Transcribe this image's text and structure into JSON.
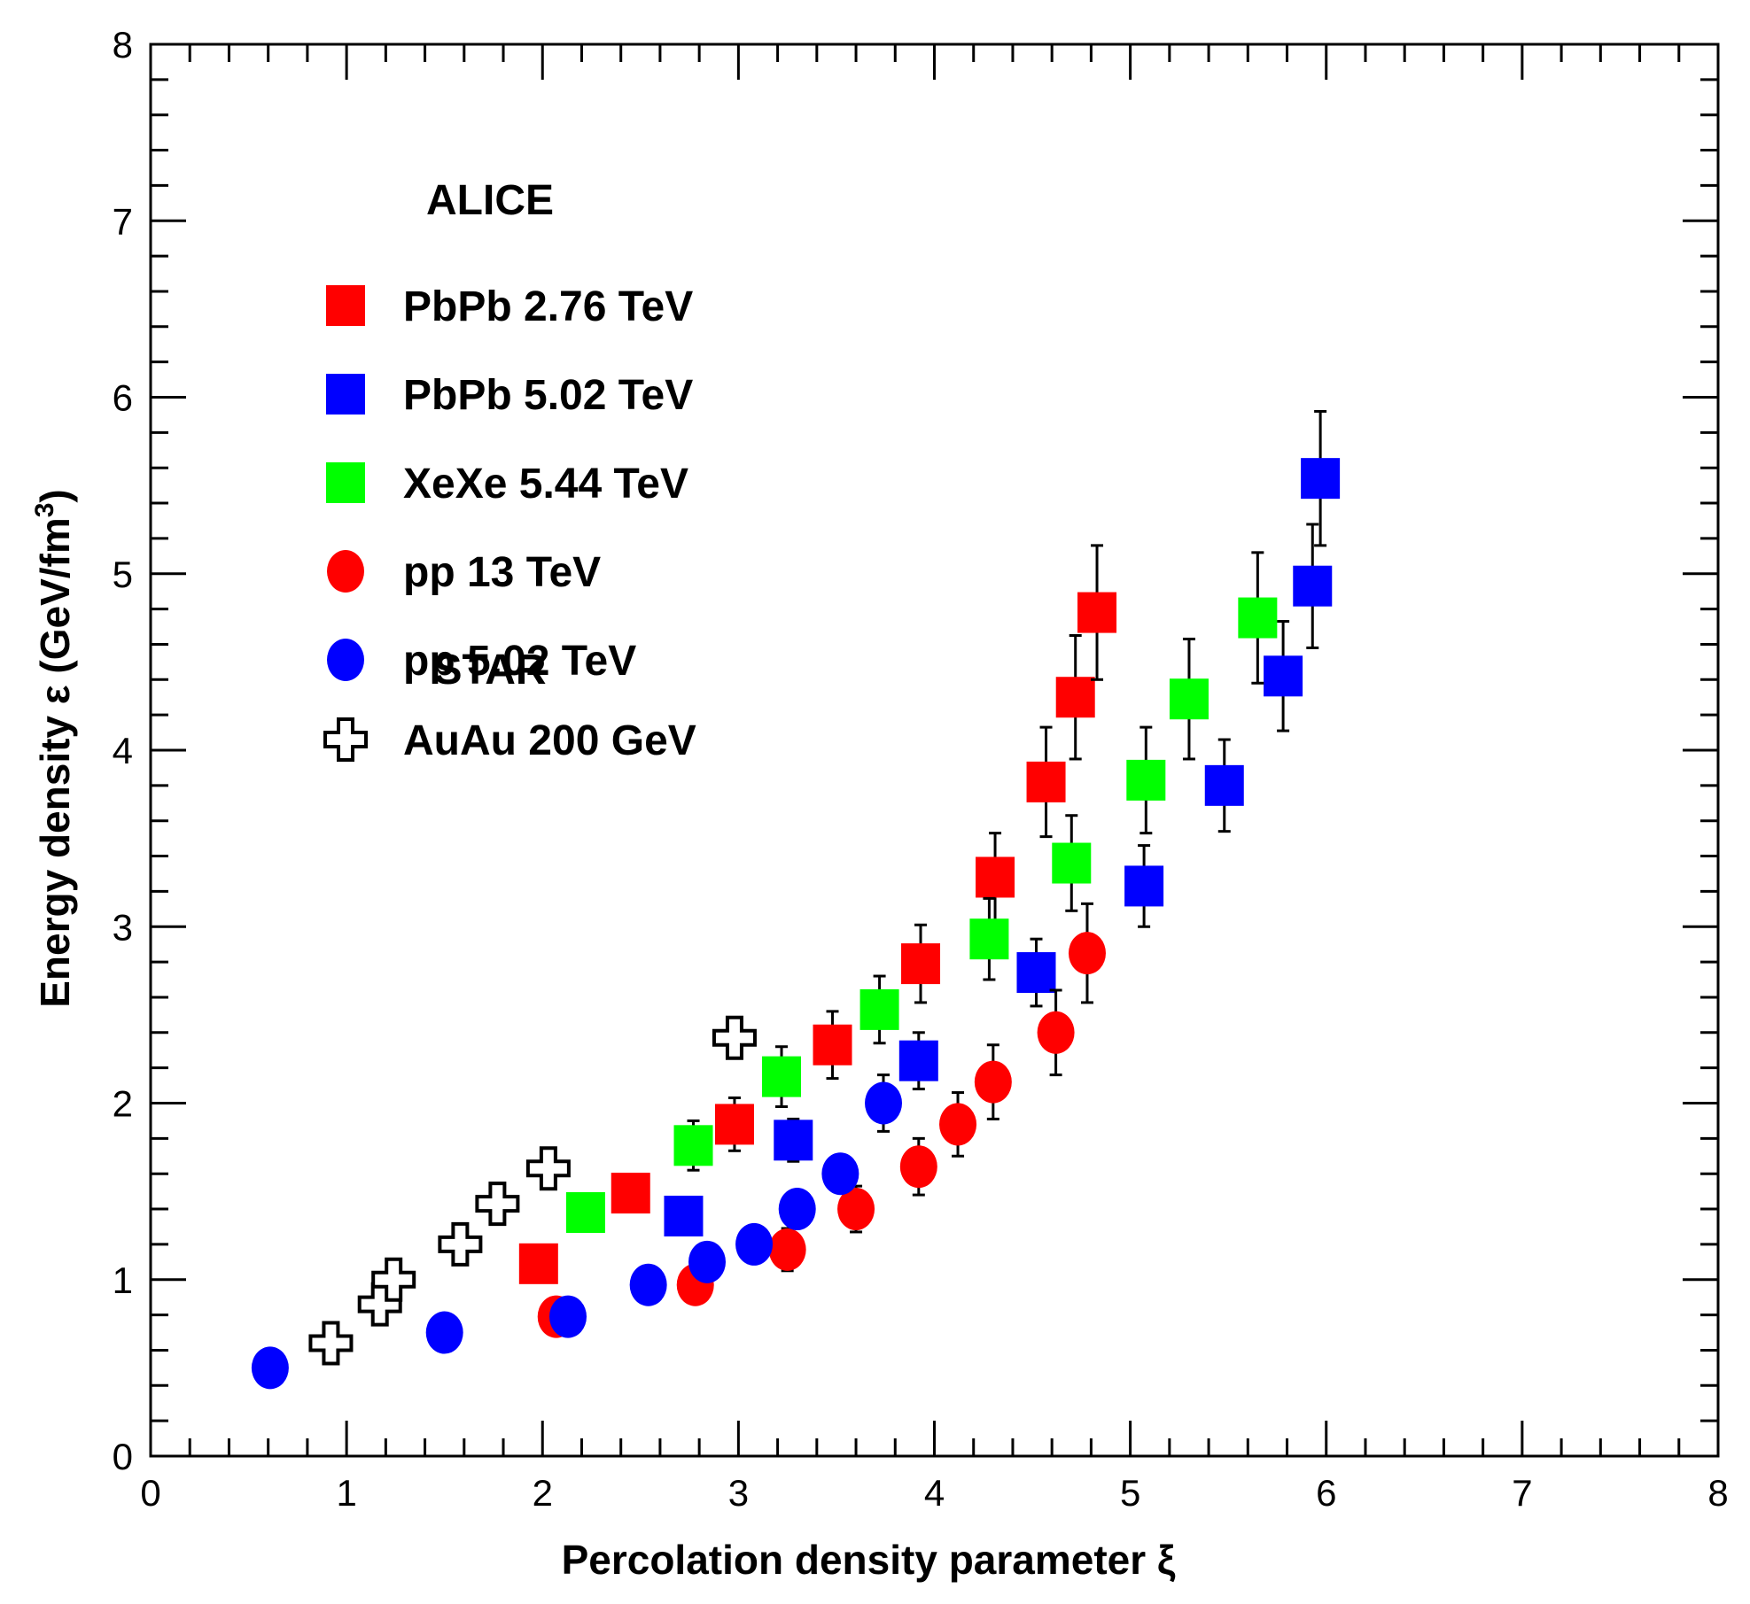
{
  "chart_data": {
    "type": "scatter",
    "title": "",
    "xlabel": "Percolation density parameter ξ",
    "ylabel": "Energy density  ε (GeV/fm",
    "ylabel_superscript": "3",
    "ylabel_close": ")",
    "xlim": [
      0,
      8
    ],
    "ylim": [
      0,
      8
    ],
    "x_ticks": [
      "0",
      "1",
      "2",
      "3",
      "4",
      "5",
      "6",
      "7",
      "8"
    ],
    "y_ticks": [
      "0",
      "1",
      "2",
      "3",
      "4",
      "5",
      "6",
      "7",
      "8"
    ],
    "grid": false,
    "legend": {
      "placement": "top-left",
      "groups": [
        {
          "header": "ALICE",
          "entries": [
            "PbPb 2.76 TeV",
            "PbPb 5.02 TeV",
            "XeXe 5.44 TeV",
            "pp 13 TeV",
            "pp 5.02 TeV"
          ]
        },
        {
          "header": "STAR",
          "entries": [
            "AuAu 200 GeV"
          ]
        }
      ]
    },
    "series": [
      {
        "name": "PbPb 2.76 TeV",
        "marker": "square",
        "color": "#ff0000",
        "points": [
          {
            "x": 1.98,
            "y": 1.09,
            "err": 0.0
          },
          {
            "x": 2.45,
            "y": 1.49,
            "err": 0.1
          },
          {
            "x": 2.98,
            "y": 1.88,
            "err": 0.15
          },
          {
            "x": 3.48,
            "y": 2.33,
            "err": 0.19
          },
          {
            "x": 3.93,
            "y": 2.79,
            "err": 0.22
          },
          {
            "x": 4.31,
            "y": 3.28,
            "err": 0.25
          },
          {
            "x": 4.57,
            "y": 3.82,
            "err": 0.31
          },
          {
            "x": 4.72,
            "y": 4.3,
            "err": 0.35
          },
          {
            "x": 4.83,
            "y": 4.78,
            "err": 0.38
          }
        ]
      },
      {
        "name": "PbPb 5.02 TeV",
        "marker": "square",
        "color": "#0000ff",
        "points": [
          {
            "x": 2.72,
            "y": 1.36,
            "err": 0.0
          },
          {
            "x": 3.28,
            "y": 1.79,
            "err": 0.12
          },
          {
            "x": 3.92,
            "y": 2.24,
            "err": 0.16
          },
          {
            "x": 4.52,
            "y": 2.74,
            "err": 0.19
          },
          {
            "x": 5.07,
            "y": 3.23,
            "err": 0.23
          },
          {
            "x": 5.48,
            "y": 3.8,
            "err": 0.26
          },
          {
            "x": 5.78,
            "y": 4.42,
            "err": 0.31
          },
          {
            "x": 5.93,
            "y": 4.93,
            "err": 0.35
          },
          {
            "x": 5.97,
            "y": 5.54,
            "err": 0.38
          }
        ]
      },
      {
        "name": "XeXe 5.44 TeV",
        "marker": "square",
        "color": "#00ff00",
        "points": [
          {
            "x": 2.22,
            "y": 1.38,
            "err": 0.0
          },
          {
            "x": 2.77,
            "y": 1.76,
            "err": 0.14
          },
          {
            "x": 3.22,
            "y": 2.15,
            "err": 0.17
          },
          {
            "x": 3.72,
            "y": 2.53,
            "err": 0.19
          },
          {
            "x": 4.28,
            "y": 2.93,
            "err": 0.23
          },
          {
            "x": 4.7,
            "y": 3.36,
            "err": 0.27
          },
          {
            "x": 5.08,
            "y": 3.83,
            "err": 0.3
          },
          {
            "x": 5.3,
            "y": 4.29,
            "err": 0.34
          },
          {
            "x": 5.65,
            "y": 4.75,
            "err": 0.37
          }
        ]
      },
      {
        "name": "pp 13 TeV",
        "marker": "circle",
        "color": "#ff0000",
        "points": [
          {
            "x": 2.07,
            "y": 0.79,
            "err": 0.0
          },
          {
            "x": 2.78,
            "y": 0.97,
            "err": 0.0
          },
          {
            "x": 3.25,
            "y": 1.17,
            "err": 0.12
          },
          {
            "x": 3.6,
            "y": 1.4,
            "err": 0.13
          },
          {
            "x": 3.92,
            "y": 1.64,
            "err": 0.16
          },
          {
            "x": 4.12,
            "y": 1.88,
            "err": 0.18
          },
          {
            "x": 4.3,
            "y": 2.12,
            "err": 0.21
          },
          {
            "x": 4.62,
            "y": 2.4,
            "err": 0.24
          },
          {
            "x": 4.78,
            "y": 2.85,
            "err": 0.28
          }
        ]
      },
      {
        "name": "pp 5.02 TeV",
        "marker": "circle",
        "color": "#0000ff",
        "points": [
          {
            "x": 0.61,
            "y": 0.5,
            "err": 0.0
          },
          {
            "x": 1.5,
            "y": 0.7,
            "err": 0.0
          },
          {
            "x": 2.13,
            "y": 0.79,
            "err": 0.0
          },
          {
            "x": 2.54,
            "y": 0.97,
            "err": 0.0
          },
          {
            "x": 2.84,
            "y": 1.1,
            "err": 0.0
          },
          {
            "x": 3.08,
            "y": 1.2,
            "err": 0.0
          },
          {
            "x": 3.3,
            "y": 1.4,
            "err": 0.0
          },
          {
            "x": 3.52,
            "y": 1.6,
            "err": 0.0
          },
          {
            "x": 3.74,
            "y": 2.0,
            "err": 0.16
          }
        ]
      },
      {
        "name": "AuAu 200 GeV",
        "marker": "open-cross",
        "color": "#000000",
        "points": [
          {
            "x": 0.92,
            "y": 0.64,
            "err": 0.0
          },
          {
            "x": 1.17,
            "y": 0.86,
            "err": 0.0
          },
          {
            "x": 1.24,
            "y": 1.0,
            "err": 0.0
          },
          {
            "x": 1.58,
            "y": 1.2,
            "err": 0.0
          },
          {
            "x": 1.77,
            "y": 1.43,
            "err": 0.0
          },
          {
            "x": 2.03,
            "y": 1.63,
            "err": 0.0
          },
          {
            "x": 2.98,
            "y": 2.37,
            "err": 0.0
          }
        ]
      }
    ]
  }
}
